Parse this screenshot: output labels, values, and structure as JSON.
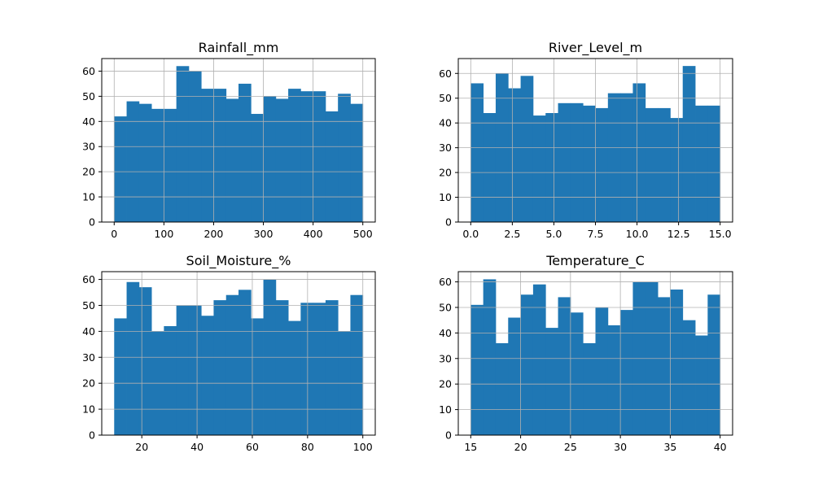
{
  "colors": {
    "bar": "#1f77b4",
    "grid": "#b0b0b0",
    "axis": "#000000",
    "background": "#ffffff"
  },
  "chart_data": [
    {
      "type": "bar",
      "title": "Rainfall_mm",
      "xlabel": "",
      "ylabel": "",
      "grid": true,
      "bins": 20,
      "x_range": [
        0,
        500
      ],
      "xlim": [
        -25,
        525
      ],
      "ylim": [
        0,
        65
      ],
      "xticks": [
        0,
        100,
        200,
        300,
        400,
        500
      ],
      "xtick_labels": [
        "0",
        "100",
        "200",
        "300",
        "400",
        "500"
      ],
      "yticks": [
        0,
        10,
        20,
        30,
        40,
        50,
        60
      ],
      "ytick_labels": [
        "0",
        "10",
        "20",
        "30",
        "40",
        "50",
        "60"
      ],
      "values": [
        42,
        48,
        47,
        45,
        45,
        62,
        60,
        53,
        53,
        49,
        55,
        43,
        50,
        49,
        53,
        52,
        52,
        44,
        51,
        47
      ]
    },
    {
      "type": "bar",
      "title": "River_Level_m",
      "xlabel": "",
      "ylabel": "",
      "grid": true,
      "bins": 20,
      "x_range": [
        0,
        15
      ],
      "xlim": [
        -0.75,
        15.75
      ],
      "ylim": [
        0,
        66
      ],
      "xticks": [
        0,
        2.5,
        5,
        7.5,
        10,
        12.5,
        15
      ],
      "xtick_labels": [
        "0.0",
        "2.5",
        "5.0",
        "7.5",
        "10.0",
        "12.5",
        "15.0"
      ],
      "yticks": [
        0,
        10,
        20,
        30,
        40,
        50,
        60
      ],
      "ytick_labels": [
        "0",
        "10",
        "20",
        "30",
        "40",
        "50",
        "60"
      ],
      "values": [
        56,
        44,
        60,
        54,
        59,
        43,
        44,
        48,
        48,
        47,
        46,
        52,
        52,
        56,
        46,
        46,
        42,
        63,
        47,
        47
      ]
    },
    {
      "type": "bar",
      "title": "Soil_Moisture_%",
      "xlabel": "",
      "ylabel": "",
      "grid": true,
      "bins": 20,
      "x_range": [
        10,
        100
      ],
      "xlim": [
        5.5,
        104.5
      ],
      "ylim": [
        0,
        63
      ],
      "xticks": [
        20,
        40,
        60,
        80,
        100
      ],
      "xtick_labels": [
        "20",
        "40",
        "60",
        "80",
        "100"
      ],
      "yticks": [
        0,
        10,
        20,
        30,
        40,
        50,
        60
      ],
      "ytick_labels": [
        "0",
        "10",
        "20",
        "30",
        "40",
        "50",
        "60"
      ],
      "values": [
        45,
        59,
        57,
        40,
        42,
        50,
        50,
        46,
        52,
        54,
        56,
        45,
        60,
        52,
        44,
        51,
        51,
        52,
        40,
        54
      ]
    },
    {
      "type": "bar",
      "title": "Temperature_C",
      "xlabel": "",
      "ylabel": "",
      "grid": true,
      "bins": 20,
      "x_range": [
        15,
        40
      ],
      "xlim": [
        13.75,
        41.25
      ],
      "ylim": [
        0,
        64
      ],
      "xticks": [
        15,
        20,
        25,
        30,
        35,
        40
      ],
      "xtick_labels": [
        "15",
        "20",
        "25",
        "30",
        "35",
        "40"
      ],
      "yticks": [
        0,
        10,
        20,
        30,
        40,
        50,
        60
      ],
      "ytick_labels": [
        "0",
        "10",
        "20",
        "30",
        "40",
        "50",
        "60"
      ],
      "values": [
        51,
        61,
        36,
        46,
        55,
        59,
        42,
        54,
        48,
        36,
        50,
        43,
        49,
        60,
        60,
        54,
        57,
        45,
        39,
        55
      ]
    }
  ]
}
